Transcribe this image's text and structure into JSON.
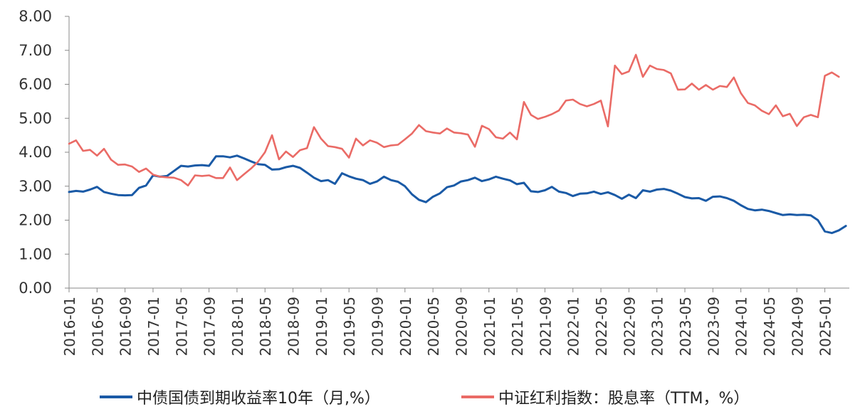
{
  "chart_data": {
    "type": "line",
    "title": "",
    "xlabel": "",
    "ylabel": "",
    "ylim": [
      0,
      8
    ],
    "yticks": [
      "0.00",
      "1.00",
      "2.00",
      "3.00",
      "4.00",
      "5.00",
      "6.00",
      "7.00",
      "8.00"
    ],
    "x_tick_labels": [
      "2016-01",
      "2016-05",
      "2016-09",
      "2017-01",
      "2017-05",
      "2017-09",
      "2018-01",
      "2018-05",
      "2018-09",
      "2019-01",
      "2019-05",
      "2019-09",
      "2020-01",
      "2020-05",
      "2020-09",
      "2021-01",
      "2021-05",
      "2021-09",
      "2022-01",
      "2022-05",
      "2022-09",
      "2023-01",
      "2023-05",
      "2023-09",
      "2024-01",
      "2024-05",
      "2024-09",
      "2025-01"
    ],
    "x_start": "2016-01",
    "x_end": "2025-04",
    "legend_position": "bottom",
    "series": [
      {
        "name": "中债国债到期收益率10年（月,%）",
        "color": "#1a5aa6",
        "values": [
          2.83,
          2.86,
          2.84,
          2.9,
          2.98,
          2.83,
          2.78,
          2.74,
          2.73,
          2.74,
          2.95,
          3.02,
          3.32,
          3.28,
          3.3,
          3.45,
          3.6,
          3.58,
          3.61,
          3.62,
          3.6,
          3.88,
          3.88,
          3.85,
          3.9,
          3.82,
          3.73,
          3.65,
          3.63,
          3.49,
          3.5,
          3.56,
          3.6,
          3.54,
          3.4,
          3.25,
          3.15,
          3.18,
          3.07,
          3.38,
          3.29,
          3.22,
          3.18,
          3.07,
          3.14,
          3.28,
          3.18,
          3.13,
          3.0,
          2.76,
          2.6,
          2.53,
          2.69,
          2.79,
          2.97,
          3.02,
          3.14,
          3.18,
          3.25,
          3.15,
          3.2,
          3.28,
          3.22,
          3.17,
          3.06,
          3.1,
          2.85,
          2.83,
          2.88,
          2.98,
          2.84,
          2.8,
          2.71,
          2.78,
          2.79,
          2.84,
          2.77,
          2.82,
          2.74,
          2.63,
          2.75,
          2.65,
          2.88,
          2.84,
          2.9,
          2.92,
          2.87,
          2.78,
          2.68,
          2.64,
          2.65,
          2.57,
          2.69,
          2.7,
          2.65,
          2.57,
          2.44,
          2.33,
          2.29,
          2.31,
          2.27,
          2.21,
          2.15,
          2.17,
          2.15,
          2.16,
          2.14,
          2.0,
          1.67,
          1.62,
          1.7,
          1.83
        ]
      },
      {
        "name": "中证红利指数：股息率（TTM，%）",
        "color": "#ea6b66",
        "values": [
          4.25,
          4.35,
          4.04,
          4.07,
          3.9,
          4.1,
          3.78,
          3.63,
          3.64,
          3.58,
          3.42,
          3.52,
          3.34,
          3.28,
          3.26,
          3.25,
          3.18,
          3.02,
          3.32,
          3.3,
          3.32,
          3.24,
          3.24,
          3.55,
          3.18,
          3.35,
          3.52,
          3.72,
          4.0,
          4.5,
          3.79,
          4.02,
          3.86,
          4.06,
          4.12,
          4.74,
          4.4,
          4.18,
          4.15,
          4.1,
          3.84,
          4.4,
          4.2,
          4.35,
          4.28,
          4.15,
          4.2,
          4.22,
          4.38,
          4.55,
          4.8,
          4.62,
          4.58,
          4.55,
          4.7,
          4.58,
          4.56,
          4.52,
          4.16,
          4.78,
          4.68,
          4.44,
          4.4,
          4.58,
          4.38,
          5.48,
          5.1,
          4.98,
          5.04,
          5.12,
          5.23,
          5.52,
          5.55,
          5.42,
          5.35,
          5.42,
          5.52,
          4.76,
          6.55,
          6.3,
          6.38,
          6.87,
          6.22,
          6.55,
          6.45,
          6.42,
          6.32,
          5.84,
          5.85,
          6.02,
          5.84,
          5.98,
          5.84,
          5.95,
          5.92,
          6.2,
          5.74,
          5.45,
          5.38,
          5.22,
          5.12,
          5.38,
          5.06,
          5.13,
          4.77,
          5.03,
          5.1,
          5.03,
          6.25,
          6.35,
          6.22
        ]
      }
    ]
  }
}
